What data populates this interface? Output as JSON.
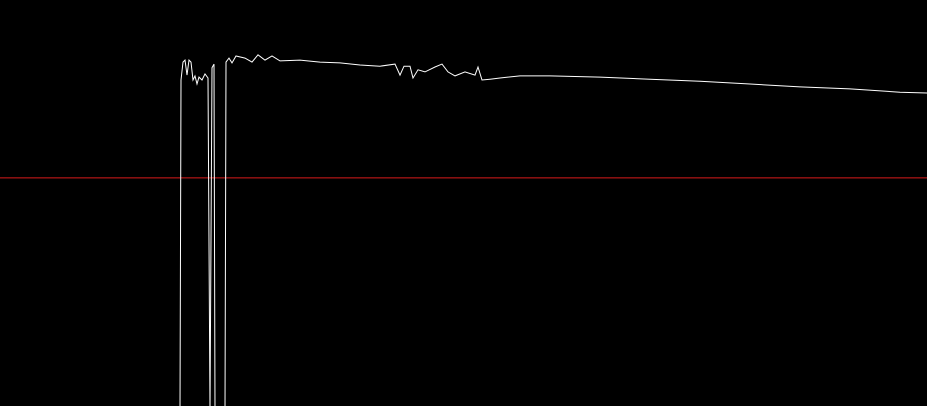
{
  "chart_data": {
    "type": "line",
    "background": "#000000",
    "xlim": [
      0,
      927
    ],
    "ylim": [
      0,
      100
    ],
    "x": [
      180,
      181,
      183,
      185,
      187,
      189,
      191,
      193,
      195,
      197,
      199,
      202,
      205,
      208,
      210,
      212,
      214,
      215,
      225,
      226,
      229,
      232,
      236,
      245,
      252,
      258,
      265,
      272,
      280,
      300,
      320,
      340,
      360,
      380,
      395,
      400,
      404,
      410,
      413,
      418,
      425,
      435,
      442,
      448,
      455,
      465,
      475,
      478,
      482,
      490,
      500,
      520,
      550,
      600,
      650,
      700,
      750,
      800,
      850,
      900,
      927
    ],
    "series": [
      {
        "color": "#ffffff",
        "values": [
          -1,
          80.3,
          84.7,
          85.2,
          81.5,
          85.2,
          84.7,
          80.3,
          81.3,
          79.3,
          81.0,
          80.3,
          81.8,
          80.8,
          -1,
          83.3,
          84.2,
          -1,
          -1,
          84.7,
          85.7,
          84.5,
          86.2,
          85.7,
          84.7,
          86.5,
          85.2,
          86.2,
          85.0,
          85.2,
          84.7,
          84.5,
          84.0,
          83.7,
          84.2,
          81.5,
          83.7,
          83.7,
          80.8,
          82.8,
          82.3,
          83.5,
          84.2,
          82.3,
          81.3,
          82.3,
          81.5,
          83.5,
          80.3,
          80.5,
          80.8,
          81.3,
          81.3,
          81.0,
          80.5,
          80.0,
          79.3,
          78.6,
          78.1,
          77.3,
          77.1
        ]
      }
    ],
    "reference_line": {
      "value": 56.2,
      "color": "#d81b1b"
    }
  }
}
